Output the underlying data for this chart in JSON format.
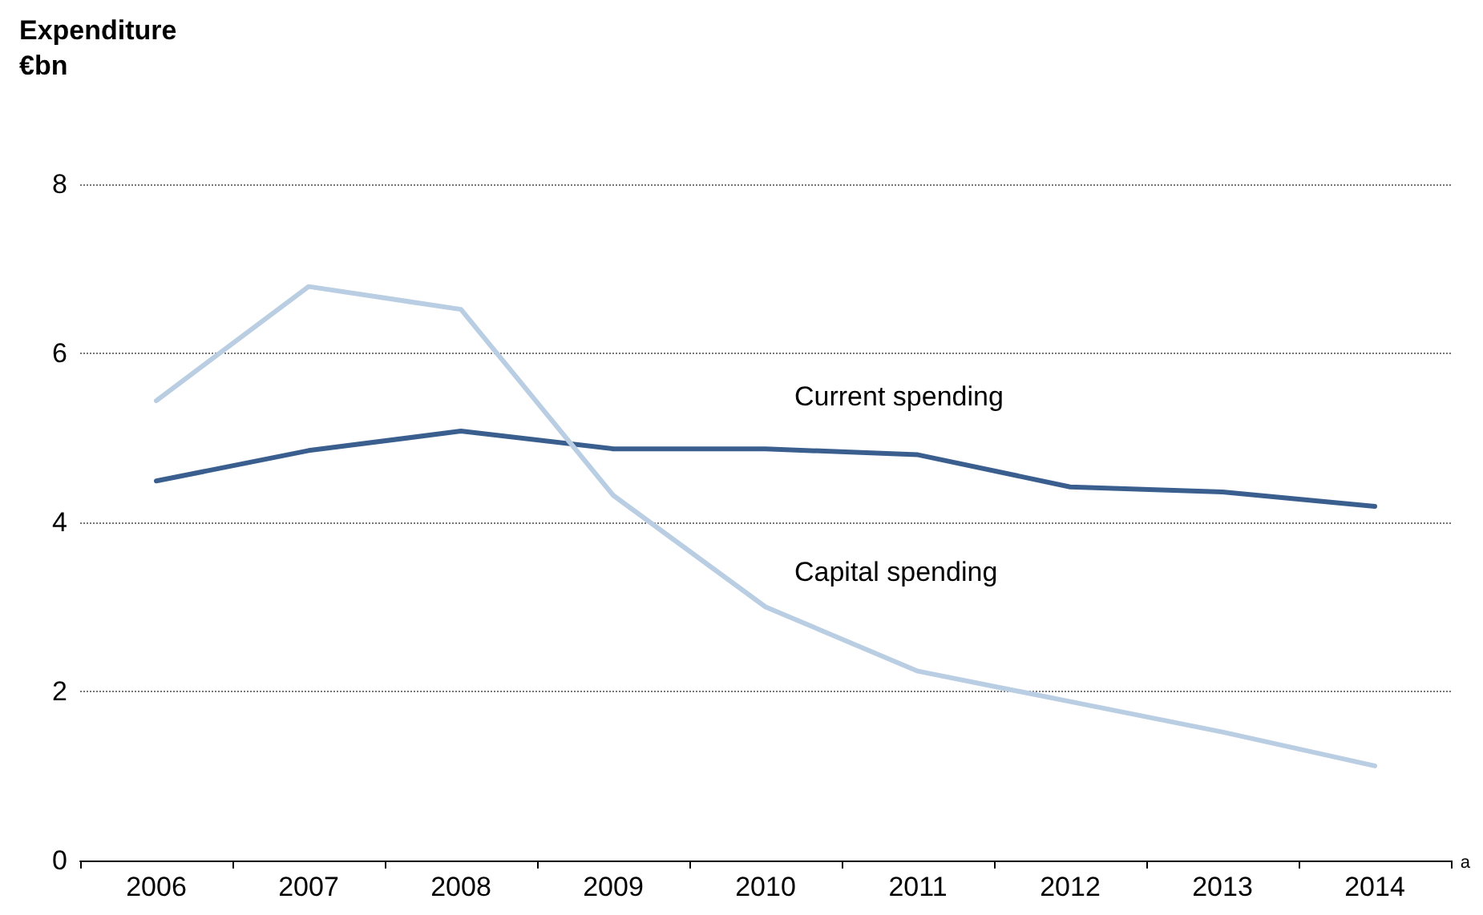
{
  "chart_data": {
    "type": "line",
    "ylabel": "Expenditure €bn",
    "categories": [
      "2006",
      "2007",
      "2008",
      "2009",
      "2010",
      "2011",
      "2012",
      "2013",
      "2014"
    ],
    "series": [
      {
        "name": "Current spending",
        "color": "#3a5f8f",
        "values": [
          4.49,
          4.85,
          5.08,
          4.87,
          4.87,
          4.8,
          4.42,
          4.36,
          4.19
        ]
      },
      {
        "name": "Capital spending",
        "color": "#b9cde3",
        "values": [
          5.44,
          6.79,
          6.52,
          4.32,
          3.0,
          2.24,
          1.88,
          1.52,
          1.12
        ]
      }
    ],
    "ylim": [
      0,
      8
    ],
    "yticks": [
      0,
      2,
      4,
      6,
      8
    ],
    "grid": "y",
    "marker": "none",
    "line_style": "solid",
    "legend": false,
    "annotations": [
      "a"
    ]
  }
}
